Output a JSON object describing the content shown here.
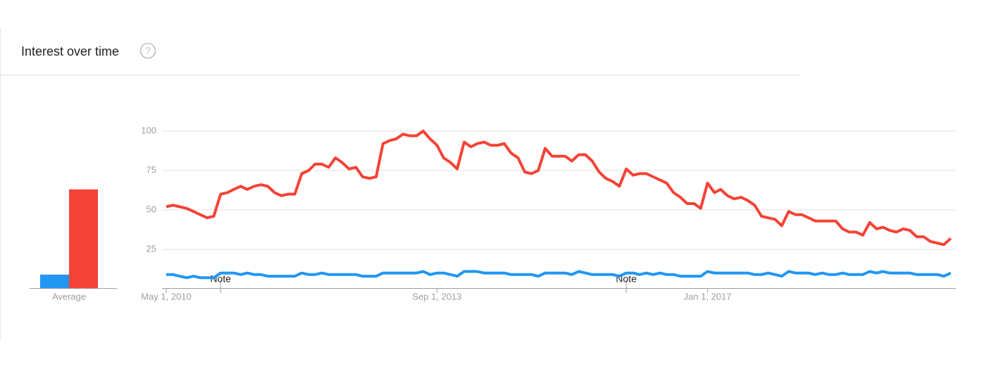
{
  "header": {
    "title": "Interest over time",
    "help": "?"
  },
  "chart_data": {
    "type": "line",
    "average_label": "Average",
    "x": [
      "2010-05-01",
      "2010-06-01",
      "2010-07-01",
      "2010-08-01",
      "2010-09-01",
      "2010-10-01",
      "2010-11-01",
      "2010-12-01",
      "2011-01-01",
      "2011-02-01",
      "2011-03-01",
      "2011-04-01",
      "2011-05-01",
      "2011-06-01",
      "2011-07-01",
      "2011-08-01",
      "2011-09-01",
      "2011-10-01",
      "2011-11-01",
      "2011-12-01",
      "2012-01-01",
      "2012-02-01",
      "2012-03-01",
      "2012-04-01",
      "2012-05-01",
      "2012-06-01",
      "2012-07-01",
      "2012-08-01",
      "2012-09-01",
      "2012-10-01",
      "2012-11-01",
      "2012-12-01",
      "2013-01-01",
      "2013-02-01",
      "2013-03-01",
      "2013-04-01",
      "2013-05-01",
      "2013-06-01",
      "2013-07-01",
      "2013-08-01",
      "2013-09-01",
      "2013-10-01",
      "2013-11-01",
      "2013-12-01",
      "2014-01-01",
      "2014-02-01",
      "2014-03-01",
      "2014-04-01",
      "2014-05-01",
      "2014-06-01",
      "2014-07-01",
      "2014-08-01",
      "2014-09-01",
      "2014-10-01",
      "2014-11-01",
      "2014-12-01",
      "2015-01-01",
      "2015-02-01",
      "2015-03-01",
      "2015-04-01",
      "2015-05-01",
      "2015-06-01",
      "2015-07-01",
      "2015-08-01",
      "2015-09-01",
      "2015-10-01",
      "2015-11-01",
      "2015-12-01",
      "2016-01-01",
      "2016-02-01",
      "2016-03-01",
      "2016-04-01",
      "2016-05-01",
      "2016-06-01",
      "2016-07-01",
      "2016-08-01",
      "2016-09-01",
      "2016-10-01",
      "2016-11-01",
      "2016-12-01",
      "2017-01-01",
      "2017-02-01",
      "2017-03-01",
      "2017-04-01",
      "2017-05-01",
      "2017-06-01",
      "2017-07-01",
      "2017-08-01",
      "2017-09-01",
      "2017-10-01",
      "2017-11-01",
      "2017-12-01",
      "2018-01-01",
      "2018-02-01",
      "2018-03-01",
      "2018-04-01",
      "2018-05-01",
      "2018-06-01",
      "2018-07-01",
      "2018-08-01",
      "2018-09-01",
      "2018-10-01",
      "2018-11-01",
      "2018-12-01",
      "2019-01-01",
      "2019-02-01",
      "2019-03-01",
      "2019-04-01",
      "2019-05-01",
      "2019-06-01",
      "2019-07-01",
      "2019-08-01",
      "2019-09-01",
      "2019-10-01",
      "2019-11-01",
      "2019-12-01",
      "2020-01-01"
    ],
    "series": [
      {
        "color": "#2196f3",
        "average": 9,
        "values": [
          9,
          9,
          8,
          7,
          8,
          7,
          7,
          7,
          10,
          10,
          10,
          9,
          10,
          9,
          9,
          8,
          8,
          8,
          8,
          8,
          10,
          9,
          9,
          10,
          9,
          9,
          9,
          9,
          9,
          8,
          8,
          8,
          10,
          10,
          10,
          10,
          10,
          10,
          11,
          9,
          10,
          10,
          9,
          8,
          11,
          11,
          11,
          10,
          10,
          10,
          10,
          9,
          9,
          9,
          9,
          8,
          10,
          10,
          10,
          10,
          9,
          11,
          10,
          9,
          9,
          9,
          9,
          8,
          10,
          10,
          9,
          10,
          9,
          10,
          9,
          9,
          8,
          8,
          8,
          8,
          11,
          10,
          10,
          10,
          10,
          10,
          10,
          9,
          9,
          10,
          9,
          8,
          11,
          10,
          10,
          10,
          9,
          10,
          9,
          9,
          10,
          9,
          9,
          9,
          11,
          10,
          11,
          10,
          10,
          10,
          10,
          9,
          9,
          9,
          9,
          8,
          10
        ]
      },
      {
        "color": "#f44336",
        "average": 63,
        "values": [
          52,
          53,
          52,
          51,
          49,
          47,
          45,
          46,
          60,
          61,
          63,
          65,
          63,
          65,
          66,
          65,
          61,
          59,
          60,
          60,
          73,
          75,
          79,
          79,
          77,
          83,
          80,
          76,
          77,
          71,
          70,
          71,
          92,
          94,
          95,
          98,
          97,
          97,
          100,
          95,
          91,
          83,
          80,
          76,
          93,
          90,
          92,
          93,
          91,
          91,
          92,
          86,
          83,
          74,
          73,
          75,
          89,
          84,
          84,
          84,
          81,
          85,
          85,
          81,
          74,
          70,
          68,
          65,
          76,
          72,
          73,
          73,
          71,
          69,
          67,
          61,
          58,
          54,
          54,
          51,
          67,
          61,
          63,
          59,
          57,
          58,
          56,
          53,
          46,
          45,
          44,
          40,
          49,
          47,
          47,
          45,
          43,
          43,
          43,
          43,
          38,
          36,
          36,
          34,
          42,
          38,
          39,
          37,
          36,
          38,
          37,
          33,
          33,
          30,
          29,
          28,
          32
        ]
      }
    ],
    "xlim": [
      "2010-05-01",
      "2020-01-01"
    ],
    "xticks": [
      {
        "value": "2010-05-01",
        "label": "May 1, 2010"
      },
      {
        "value": "2013-09-01",
        "label": "Sep 1, 2013"
      },
      {
        "value": "2017-01-01",
        "label": "Jan 1, 2017"
      }
    ],
    "ylim": [
      0,
      100
    ],
    "yticks": [
      25,
      50,
      75,
      100
    ],
    "grid": true,
    "annotations": [
      {
        "x": "2011-01-01",
        "label": "Note"
      },
      {
        "x": "2016-01-01",
        "label": "Note"
      }
    ]
  }
}
